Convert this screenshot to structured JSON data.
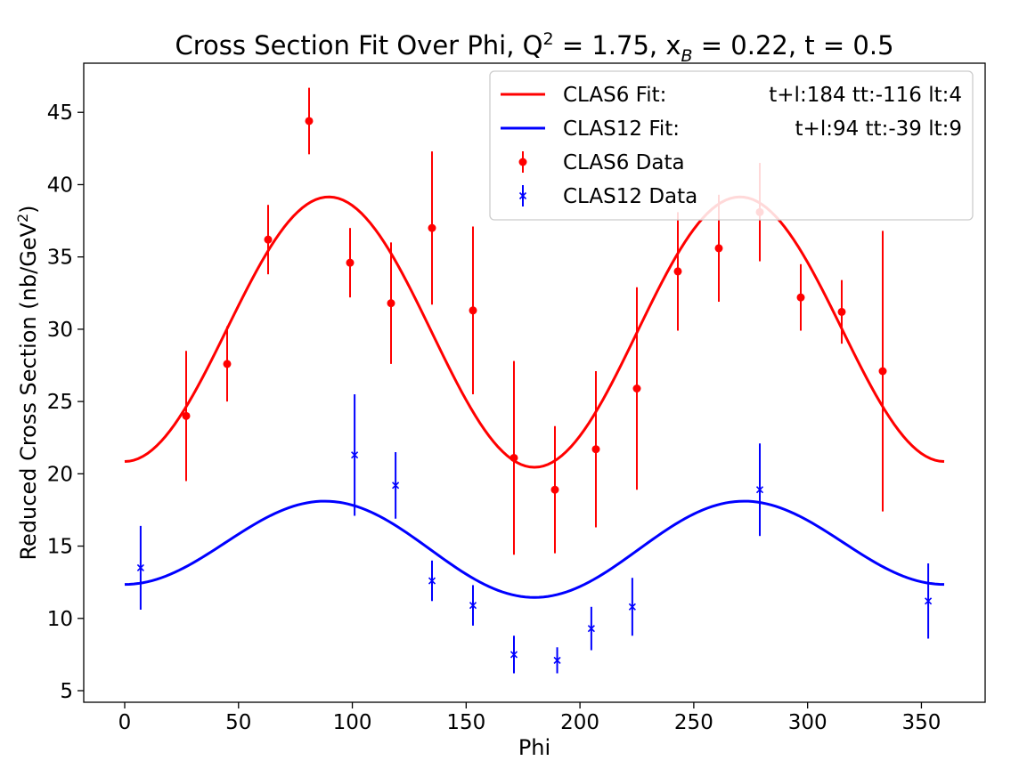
{
  "chart_data": {
    "type": "scatter",
    "title": "Cross Section Fit Over Phi, Q² = 1.75, x_B = 0.22, t = 0.5",
    "title_parts": {
      "prefix": "Cross Section Fit Over Phi, Q",
      "q_sup": "2",
      "q_value": " = 1.75, x",
      "x_sub": "B",
      "rest": " = 0.22, t = 0.5"
    },
    "xlabel": "Phi",
    "ylabel": "Reduced Cross Section (nb/GeV²)",
    "ylabel_parts": {
      "main": "Reduced Cross Section (nb/GeV",
      "sup": "2",
      "end": ")"
    },
    "xlim": [
      -18,
      378
    ],
    "ylim": [
      4.2,
      48.4
    ],
    "xticks": [
      0,
      50,
      100,
      150,
      200,
      250,
      300,
      350
    ],
    "yticks": [
      5,
      10,
      15,
      20,
      25,
      30,
      35,
      40,
      45
    ],
    "grid": false,
    "legend_position": "upper right",
    "legend": [
      {
        "kind": "line",
        "color": "#ff0000",
        "label": "CLAS6 Fit:",
        "params": "t+l:184 tt:-116 lt:4"
      },
      {
        "kind": "line",
        "color": "#0000ff",
        "label": "CLAS12 Fit:",
        "params": "t+l:94 tt:-39 lt:9"
      },
      {
        "kind": "point-dot",
        "color": "#ff0000",
        "label": "CLAS6 Data",
        "params": ""
      },
      {
        "kind": "point-x",
        "color": "#0000ff",
        "label": "CLAS12 Data",
        "params": ""
      }
    ],
    "fits": [
      {
        "name": "CLAS6 Fit",
        "color": "#ff0000",
        "A": 29.9,
        "B": -9.25,
        "C": 0.2
      },
      {
        "name": "CLAS12 Fit",
        "color": "#0000ff",
        "A": 15.0,
        "B": -3.1,
        "C": 0.45
      }
    ],
    "series": [
      {
        "name": "CLAS6 Data",
        "color": "#ff0000",
        "marker": "dot",
        "points": [
          {
            "x": 27,
            "y": 24.0,
            "err": 4.5
          },
          {
            "x": 45,
            "y": 27.6,
            "err": 2.6
          },
          {
            "x": 63,
            "y": 36.2,
            "err": 2.4
          },
          {
            "x": 81,
            "y": 44.4,
            "err": 2.3
          },
          {
            "x": 99,
            "y": 34.6,
            "err": 2.4
          },
          {
            "x": 117,
            "y": 31.8,
            "err": 4.2
          },
          {
            "x": 135,
            "y": 37.0,
            "err": 5.3
          },
          {
            "x": 153,
            "y": 31.3,
            "err": 5.8
          },
          {
            "x": 171,
            "y": 21.1,
            "err": 6.7
          },
          {
            "x": 189,
            "y": 18.9,
            "err": 4.4
          },
          {
            "x": 207,
            "y": 21.7,
            "err": 5.4
          },
          {
            "x": 225,
            "y": 25.9,
            "err": 7.0
          },
          {
            "x": 243,
            "y": 34.0,
            "err": 4.1
          },
          {
            "x": 261,
            "y": 35.6,
            "err": 3.7
          },
          {
            "x": 279,
            "y": 38.1,
            "err": 3.4
          },
          {
            "x": 297,
            "y": 32.2,
            "err": 2.3
          },
          {
            "x": 315,
            "y": 31.2,
            "err": 2.2
          },
          {
            "x": 333,
            "y": 27.1,
            "err": 9.7
          }
        ]
      },
      {
        "name": "CLAS12 Data",
        "color": "#0000ff",
        "marker": "x",
        "points": [
          {
            "x": 7,
            "y": 13.5,
            "err": 2.9
          },
          {
            "x": 101,
            "y": 21.3,
            "err": 4.2
          },
          {
            "x": 119,
            "y": 19.2,
            "err": 2.3
          },
          {
            "x": 135,
            "y": 12.6,
            "err": 1.4
          },
          {
            "x": 153,
            "y": 10.9,
            "err": 1.4
          },
          {
            "x": 171,
            "y": 7.5,
            "err": 1.3
          },
          {
            "x": 190,
            "y": 7.1,
            "err": 0.9
          },
          {
            "x": 205,
            "y": 9.3,
            "err": 1.5
          },
          {
            "x": 223,
            "y": 10.8,
            "err": 2.0
          },
          {
            "x": 279,
            "y": 18.9,
            "err": 3.2
          },
          {
            "x": 353,
            "y": 11.2,
            "err": 2.6
          }
        ]
      }
    ]
  }
}
